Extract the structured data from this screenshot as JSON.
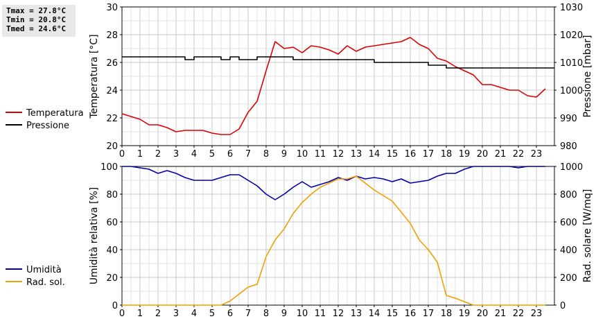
{
  "stats": {
    "tmax": "Tmax = 27.8°C",
    "tmin": "Tmin = 20.8°C",
    "tmed": "Tmed = 24.6°C"
  },
  "chart_data": [
    {
      "type": "line",
      "title": "",
      "xlabel": "",
      "x_ticks": [
        "0",
        "1",
        "2",
        "3",
        "4",
        "5",
        "6",
        "7",
        "8",
        "9",
        "10",
        "11",
        "12",
        "13",
        "14",
        "15",
        "16",
        "17",
        "18",
        "19",
        "20",
        "21",
        "22",
        "23"
      ],
      "xlim": [
        0,
        24
      ],
      "ylabel": "Temperatura [°C]",
      "ylim": [
        20,
        30
      ],
      "y_ticks": [
        20,
        22,
        24,
        26,
        28,
        30
      ],
      "y2label": "Pressione [mbar]",
      "y2lim": [
        980,
        1030
      ],
      "y2_ticks": [
        980,
        990,
        1000,
        1010,
        1020,
        1030
      ],
      "grid": true,
      "legend_position": "left",
      "series": [
        {
          "name": "Temperatura",
          "axis": "left",
          "color": "#dd0000",
          "x": [
            0,
            0.5,
            1,
            1.5,
            2,
            2.5,
            3,
            3.5,
            4,
            4.5,
            5,
            5.5,
            6,
            6.5,
            7,
            7.5,
            8,
            8.5,
            9,
            9.5,
            10,
            10.5,
            11,
            11.5,
            12,
            12.5,
            13,
            13.5,
            14,
            14.5,
            15,
            15.5,
            16,
            16.5,
            17,
            17.5,
            18,
            18.5,
            19,
            19.5,
            20,
            20.5,
            21,
            21.5,
            22,
            22.5,
            23,
            23.5
          ],
          "values": [
            22.3,
            22.1,
            21.9,
            21.5,
            21.5,
            21.3,
            21.0,
            21.1,
            21.1,
            21.1,
            20.9,
            20.8,
            20.8,
            21.2,
            22.4,
            23.2,
            25.4,
            27.5,
            27.0,
            27.1,
            26.7,
            27.2,
            27.1,
            26.9,
            26.6,
            27.2,
            26.8,
            27.1,
            27.2,
            27.3,
            27.4,
            27.5,
            27.8,
            27.3,
            27.0,
            26.3,
            26.1,
            25.7,
            25.4,
            25.1,
            24.4,
            24.4,
            24.2,
            24.0,
            24.0,
            23.6,
            23.5,
            24.1
          ]
        },
        {
          "name": "Pressione",
          "axis": "right",
          "color": "#000000",
          "x": [
            0,
            0.5,
            1,
            1.5,
            2,
            2.5,
            3,
            3.5,
            4,
            4.5,
            5,
            5.5,
            6,
            6.5,
            7,
            7.5,
            8,
            8.5,
            9,
            9.5,
            10,
            10.5,
            11,
            11.5,
            12,
            12.5,
            13,
            13.5,
            14,
            14.5,
            15,
            15.5,
            16,
            16.5,
            17,
            17.5,
            18,
            18.5,
            19,
            19.5,
            20,
            20.5,
            21,
            21.5,
            22,
            22.5,
            23,
            23.5
          ],
          "values": [
            1012,
            1012,
            1012,
            1012,
            1012,
            1012,
            1012,
            1011,
            1012,
            1012,
            1012,
            1011,
            1012,
            1011,
            1011,
            1012,
            1012,
            1012,
            1012,
            1011,
            1011,
            1011,
            1011,
            1011,
            1011,
            1011,
            1011,
            1011,
            1010,
            1010,
            1010,
            1010,
            1010,
            1010,
            1009,
            1009,
            1008,
            1008,
            1008,
            1008,
            1008,
            1008,
            1008,
            1008,
            1008,
            1008,
            1008,
            1008
          ]
        }
      ]
    },
    {
      "type": "line",
      "title": "",
      "xlabel": "",
      "x_ticks": [
        "0",
        "1",
        "2",
        "3",
        "4",
        "5",
        "6",
        "7",
        "8",
        "9",
        "10",
        "11",
        "12",
        "13",
        "14",
        "15",
        "16",
        "17",
        "18",
        "19",
        "20",
        "21",
        "22",
        "23"
      ],
      "xlim": [
        0,
        24
      ],
      "ylabel": "Umidità relativa [%]",
      "ylim": [
        0,
        100
      ],
      "y_ticks": [
        0,
        20,
        40,
        60,
        80,
        100
      ],
      "y2label": "Rad. solare [W/mq]",
      "y2lim": [
        0,
        1000
      ],
      "y2_ticks": [
        0,
        200,
        400,
        600,
        800,
        1000
      ],
      "grid": true,
      "legend_position": "left",
      "series": [
        {
          "name": "Umidità",
          "axis": "left",
          "color": "#0000aa",
          "x": [
            0,
            0.5,
            1,
            1.5,
            2,
            2.5,
            3,
            3.5,
            4,
            4.5,
            5,
            5.5,
            6,
            6.5,
            7,
            7.5,
            8,
            8.5,
            9,
            9.5,
            10,
            10.5,
            11,
            11.5,
            12,
            12.5,
            13,
            13.5,
            14,
            14.5,
            15,
            15.5,
            16,
            16.5,
            17,
            17.5,
            18,
            18.5,
            19,
            19.5,
            20,
            20.5,
            21,
            21.5,
            22,
            22.5,
            23,
            23.5
          ],
          "values": [
            100,
            100,
            99,
            98,
            95,
            97,
            95,
            92,
            90,
            90,
            90,
            92,
            94,
            94,
            90,
            86,
            80,
            76,
            80,
            85,
            89,
            85,
            87,
            89,
            92,
            90,
            93,
            91,
            92,
            91,
            89,
            91,
            88,
            89,
            90,
            93,
            95,
            95,
            98,
            100,
            100,
            100,
            100,
            100,
            99,
            100,
            100,
            100
          ]
        },
        {
          "name": "Rad. sol.",
          "axis": "right",
          "color": "#f0a000",
          "x": [
            0,
            0.5,
            1,
            1.5,
            2,
            2.5,
            3,
            3.5,
            4,
            4.5,
            5,
            5.5,
            6,
            6.5,
            7,
            7.5,
            8,
            8.5,
            9,
            9.5,
            10,
            10.5,
            11,
            11.5,
            12,
            12.5,
            13,
            13.5,
            14,
            14.5,
            15,
            15.5,
            16,
            16.5,
            17,
            17.5,
            18,
            18.5,
            19,
            19.5,
            20,
            20.5,
            21,
            21.5,
            22,
            22.5,
            23,
            23.5
          ],
          "values": [
            0,
            0,
            0,
            0,
            0,
            0,
            0,
            0,
            0,
            0,
            0,
            0,
            30,
            80,
            130,
            150,
            350,
            470,
            550,
            660,
            740,
            800,
            850,
            880,
            910,
            910,
            930,
            880,
            830,
            790,
            750,
            670,
            590,
            470,
            400,
            310,
            70,
            50,
            25,
            0,
            0,
            0,
            0,
            0,
            0,
            0,
            0,
            0
          ]
        }
      ]
    }
  ]
}
